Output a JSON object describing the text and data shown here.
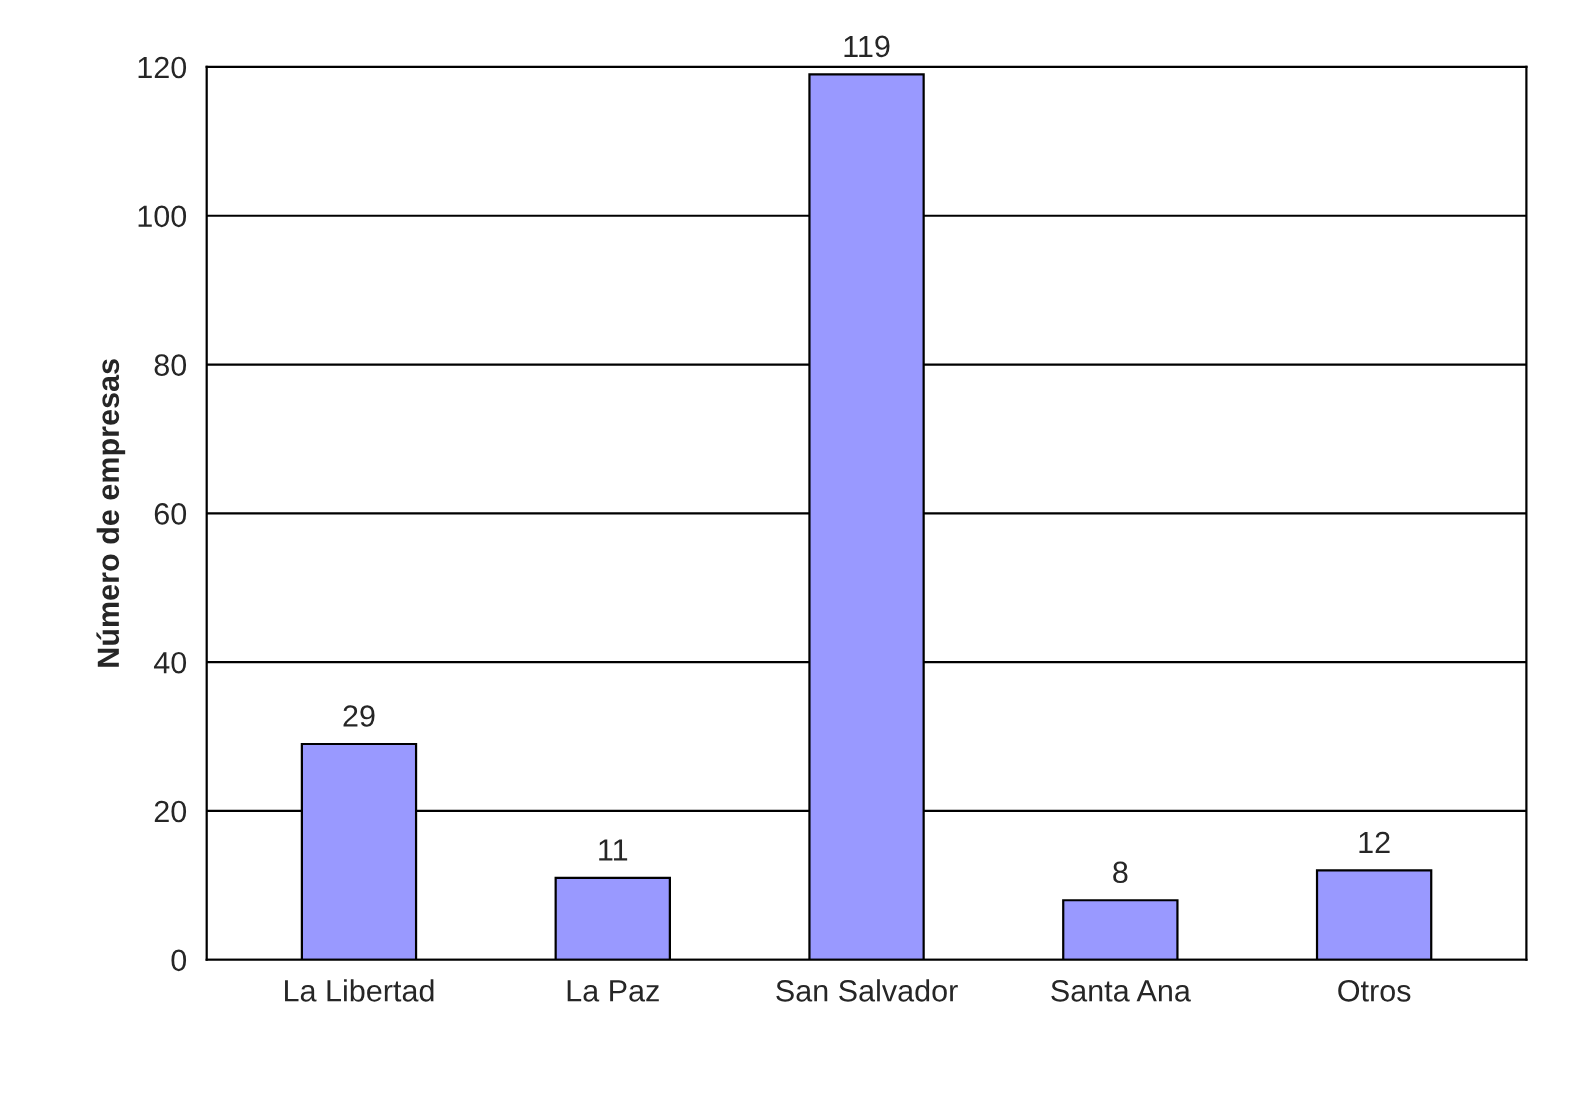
{
  "chart_data": {
    "type": "bar",
    "ylabel": "Número de empresas",
    "categories": [
      "La Libertad",
      "La Paz",
      "San Salvador",
      "Santa Ana",
      "Otros"
    ],
    "values": [
      29,
      11,
      119,
      8,
      12
    ],
    "color": "#9999ff",
    "ylim": [
      0,
      120
    ],
    "yticks": [
      0,
      20,
      40,
      60,
      80,
      100,
      120
    ],
    "grid": "y",
    "data_labels": true
  }
}
